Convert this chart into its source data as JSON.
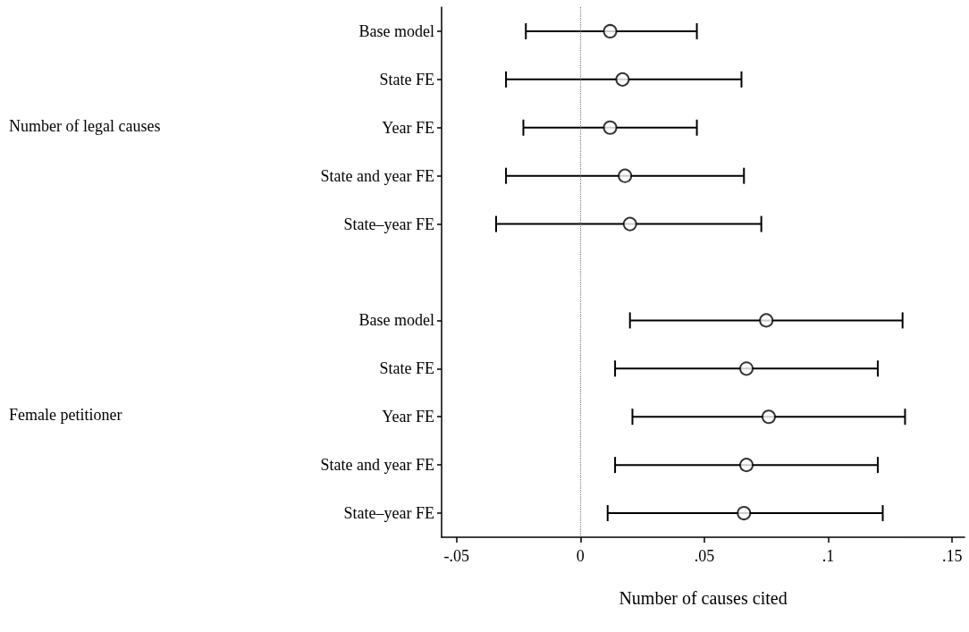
{
  "chart_data": {
    "type": "scatter",
    "orientation": "horizontal",
    "xlabel": "Number of causes cited",
    "categories": [
      "Base model",
      "State FE",
      "Year FE",
      "State and year FE",
      "State–year FE",
      null,
      "Base model",
      "State FE",
      "Year FE",
      "State and year FE",
      "State–year FE"
    ],
    "series": [
      {
        "color": "#000000",
        "values": [
          0.012,
          0.017,
          0.012,
          0.018,
          0.02,
          null,
          0.075,
          0.067,
          0.076,
          0.067,
          0.066
        ],
        "errors": [
          [
            -0.022,
            0.047
          ],
          [
            -0.03,
            0.065
          ],
          [
            -0.023,
            0.047
          ],
          [
            -0.03,
            0.066
          ],
          [
            -0.034,
            0.073
          ],
          null,
          [
            0.02,
            0.13
          ],
          [
            0.014,
            0.12
          ],
          [
            0.021,
            0.131
          ],
          [
            0.014,
            0.12
          ],
          [
            0.011,
            0.122
          ]
        ]
      }
    ],
    "marker": "circle",
    "xlim": [
      -0.056,
      0.155
    ],
    "xticks": [
      {
        "value": -0.05,
        "label": "-.05"
      },
      0,
      {
        "value": 0.05,
        "label": ".05"
      },
      {
        "value": 0.1,
        "label": ".1"
      },
      {
        "value": 0.15,
        "label": ".15"
      }
    ],
    "grid": false,
    "ref_lines": [
      {
        "axis": "x",
        "value": 0,
        "line_style": "dotted",
        "color": "#808080"
      }
    ],
    "annotations": [
      "Number of legal causes",
      "Female petitioner"
    ]
  }
}
